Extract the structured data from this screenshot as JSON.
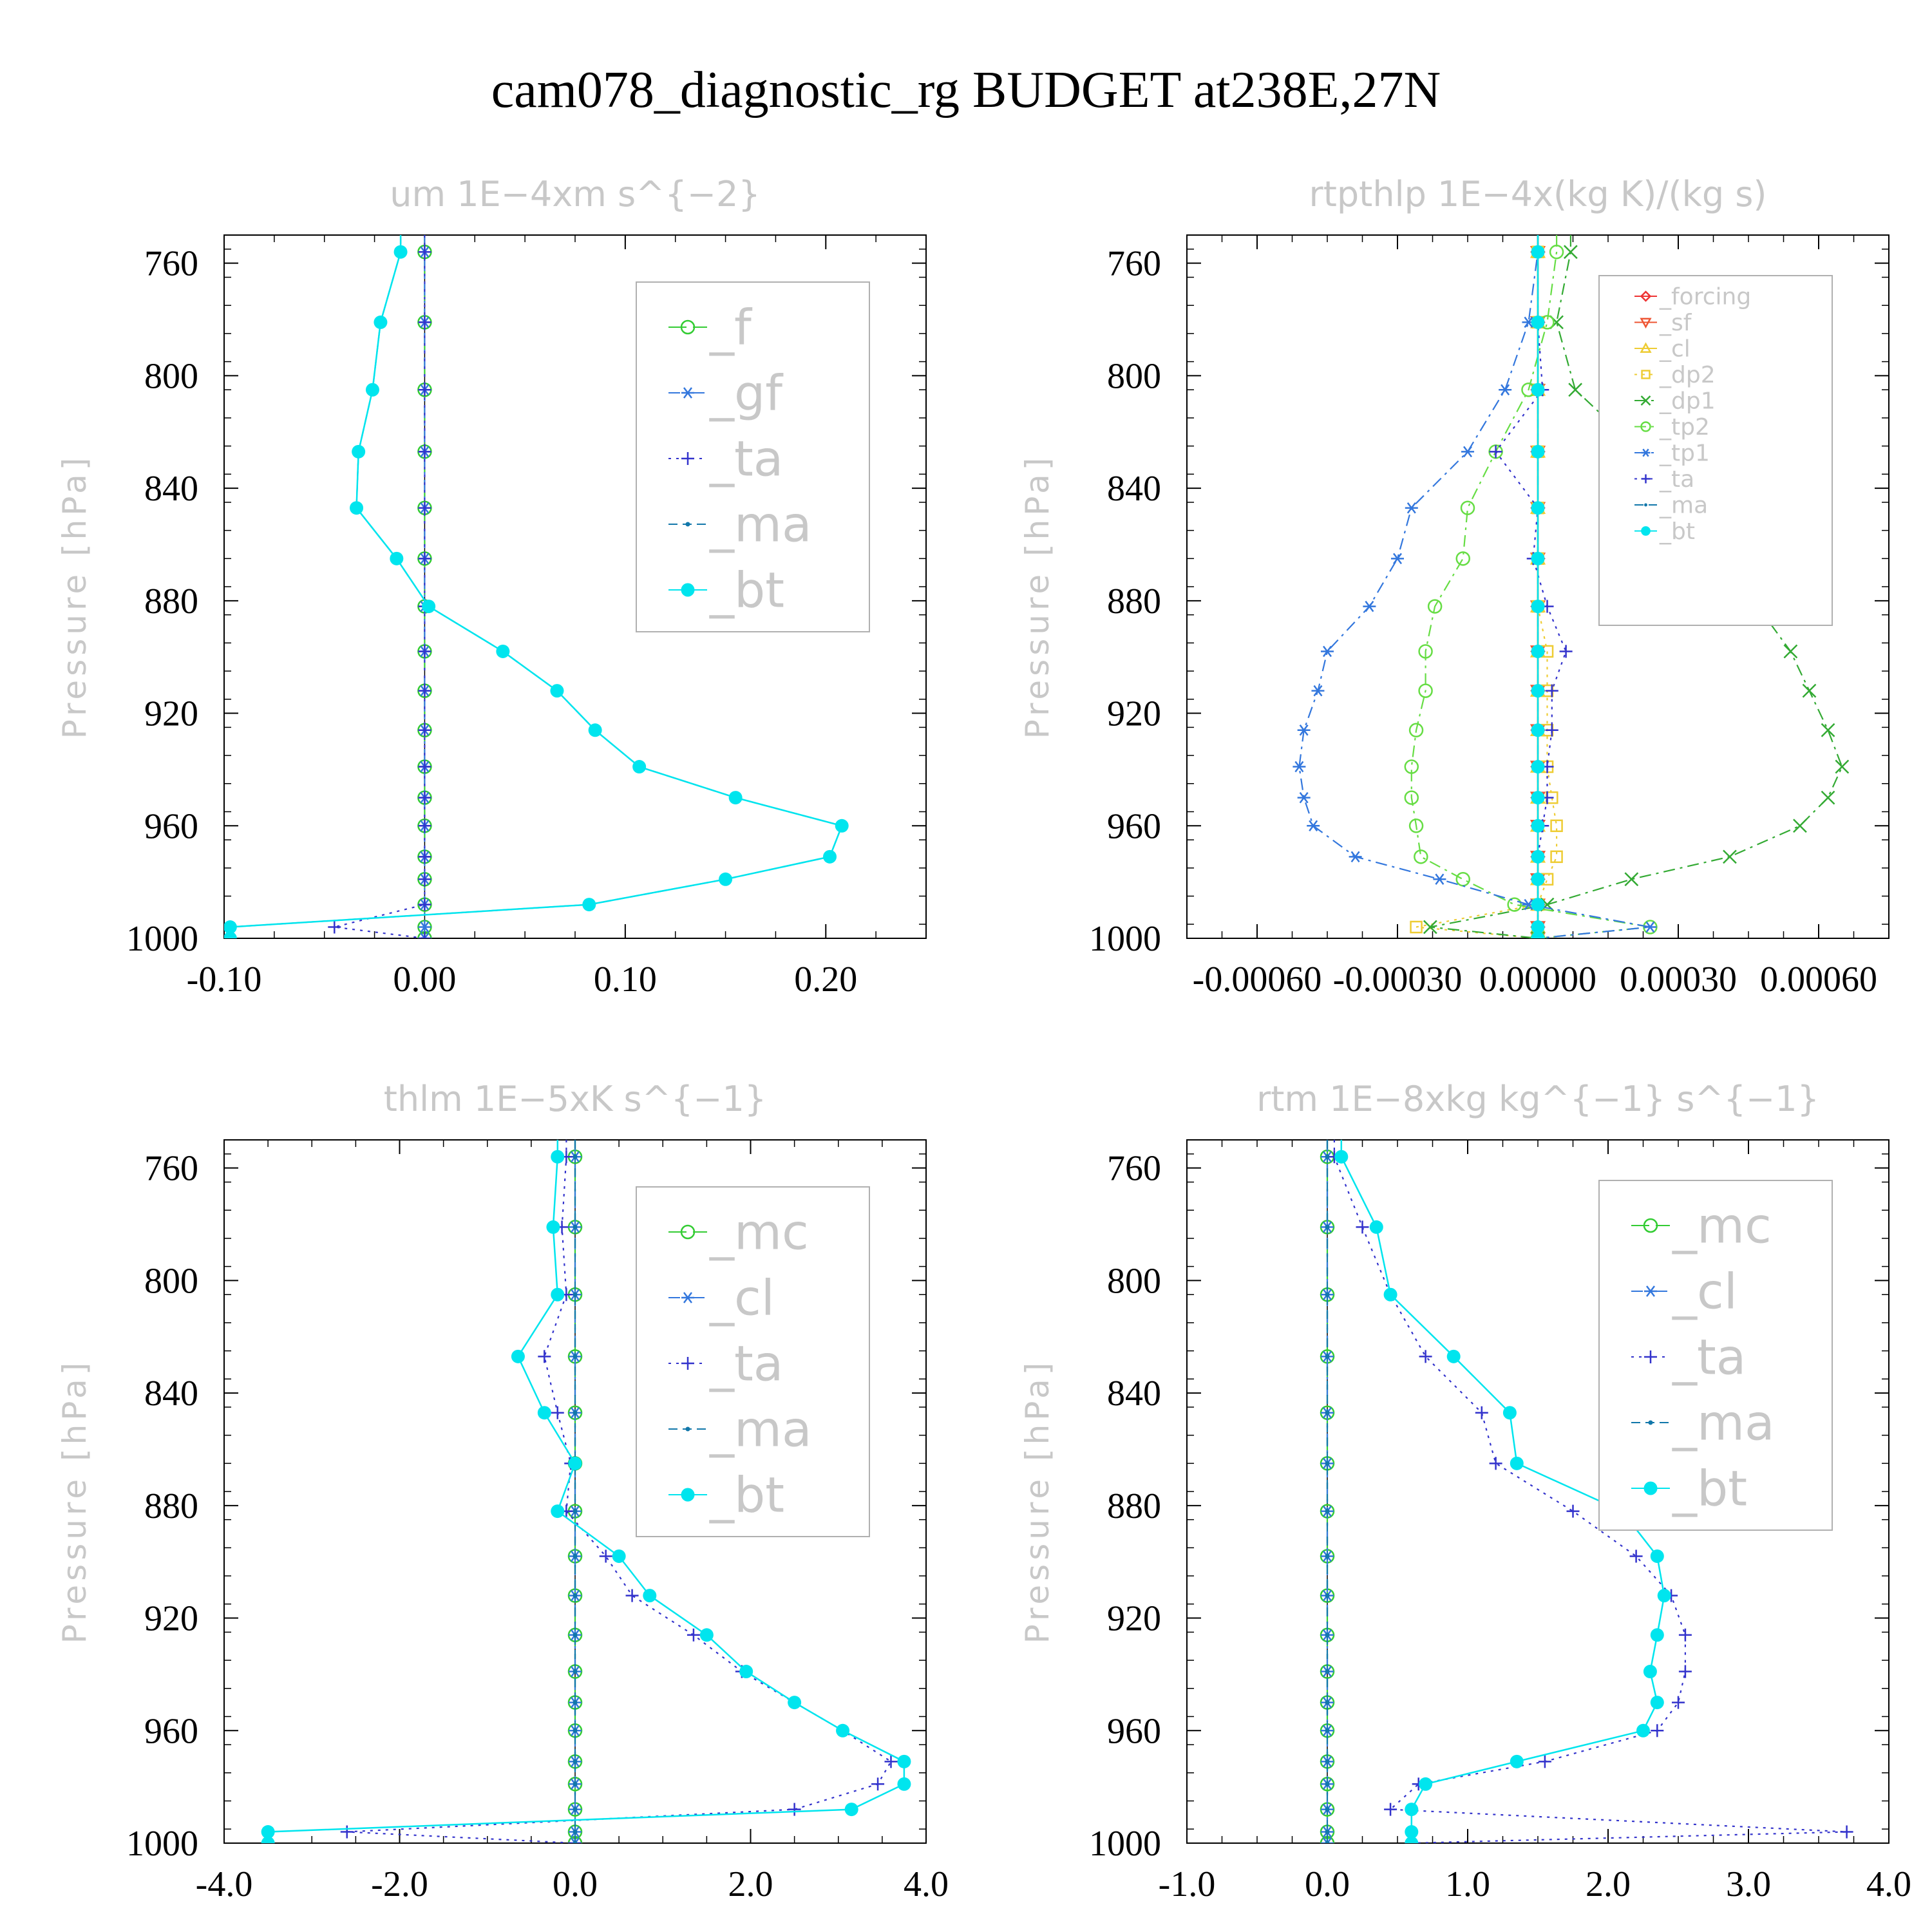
{
  "title": "cam078_diagnostic_rg  BUDGET at238E,27N",
  "chart_data": [
    {
      "type": "line",
      "title": "um   1E−4xm s^{−2}",
      "ylabel": "Pressure [hPa]",
      "ylim": [
        1000,
        750
      ],
      "yticks": [
        760,
        800,
        840,
        880,
        920,
        960,
        1000
      ],
      "xlim": [
        -0.1,
        0.25
      ],
      "xticks": [
        -0.1,
        0.0,
        0.1,
        0.2
      ],
      "xtick_labels": [
        "-0.10",
        "0.00",
        "0.10",
        "0.20"
      ],
      "legend_position": "top-right",
      "y": [
        756,
        781,
        805,
        827,
        847,
        865,
        882,
        898,
        912,
        926,
        939,
        950,
        960,
        971,
        979,
        988,
        996,
        1000
      ],
      "series": [
        {
          "name": "_f",
          "color": "#33cc33",
          "marker": "circle-open",
          "dash": "long",
          "values": [
            0,
            0,
            0,
            0,
            0,
            0,
            0,
            0,
            0,
            0,
            0,
            0,
            0,
            0,
            0,
            0,
            0,
            0
          ]
        },
        {
          "name": "_gf",
          "color": "#3377dd",
          "marker": "star",
          "dash": "dashdot",
          "values": [
            0,
            0,
            0,
            0,
            0,
            0,
            0,
            0,
            0,
            0,
            0,
            0,
            0,
            0,
            0,
            0,
            0,
            0
          ]
        },
        {
          "name": "_ta",
          "color": "#3333cc",
          "marker": "plus",
          "dash": "dot",
          "values": [
            0,
            0,
            0,
            0,
            0,
            0,
            0,
            0,
            0,
            0,
            0,
            0,
            0,
            0,
            0,
            0,
            -0.045,
            0
          ]
        },
        {
          "name": "_ma",
          "color": "#1177aa",
          "marker": "dot",
          "dash": "dash",
          "values": [
            -0.012,
            -0.022,
            -0.026,
            -0.033,
            -0.034,
            -0.014,
            0.002,
            0.039,
            0.066,
            0.085,
            0.107,
            0.155,
            0.208,
            0.202,
            0.15,
            0.082,
            -0.097,
            -0.097
          ]
        },
        {
          "name": "_bt",
          "color": "#00e5ee",
          "marker": "filled-circle",
          "dash": "solid",
          "values": [
            -0.012,
            -0.022,
            -0.026,
            -0.033,
            -0.034,
            -0.014,
            0.002,
            0.039,
            0.066,
            0.085,
            0.107,
            0.155,
            0.208,
            0.202,
            0.15,
            0.082,
            -0.097,
            -0.097
          ]
        }
      ]
    },
    {
      "type": "line",
      "title": "rtpthlp   1E−4x(kg K)/(kg s)",
      "ylabel": "Pressure [hPa]",
      "ylim": [
        1000,
        750
      ],
      "yticks": [
        760,
        800,
        840,
        880,
        920,
        960,
        1000
      ],
      "xlim": [
        -0.00075,
        0.00075
      ],
      "xticks": [
        -0.0006,
        -0.0003,
        0.0,
        0.0003,
        0.0006
      ],
      "xtick_labels": [
        "-0.00060",
        "-0.00030",
        "0.00000",
        "0.00030",
        "0.00060"
      ],
      "legend_position": "top-right",
      "y": [
        756,
        781,
        805,
        827,
        847,
        865,
        882,
        898,
        912,
        926,
        939,
        950,
        960,
        971,
        979,
        988,
        996,
        1000
      ],
      "series": [
        {
          "name": "_forcing",
          "color": "#ee3333",
          "marker": "diamond",
          "dash": "solid",
          "values": [
            0,
            0,
            0,
            0,
            0,
            0,
            0,
            0,
            0,
            0,
            0,
            0,
            0,
            0,
            0,
            0,
            0,
            0
          ]
        },
        {
          "name": "_sf",
          "color": "#ee5533",
          "marker": "tri-down",
          "dash": "solid",
          "values": [
            0,
            0,
            0,
            0,
            0,
            0,
            0,
            0,
            0,
            0,
            0,
            0,
            0,
            0,
            0,
            0,
            0,
            0
          ]
        },
        {
          "name": "_cl",
          "color": "#eecc33",
          "marker": "tri-up",
          "dash": "solid",
          "values": [
            0,
            0,
            0,
            0,
            0,
            0,
            0,
            0,
            0,
            0,
            0,
            0,
            0,
            0,
            0,
            0,
            0,
            0
          ]
        },
        {
          "name": "_dp2",
          "color": "#eecc33",
          "marker": "square",
          "dash": "dot",
          "values": [
            0,
            0,
            0,
            0,
            0,
            0,
            0,
            2e-05,
            2e-05,
            2e-05,
            2e-05,
            3e-05,
            4e-05,
            4e-05,
            2e-05,
            0,
            -0.00026,
            0
          ]
        },
        {
          "name": "_dp1",
          "color": "#33aa33",
          "marker": "x",
          "dash": "dashdot",
          "values": [
            7e-05,
            4e-05,
            8e-05,
            0.00022,
            0.00033,
            0.0004,
            0.00047,
            0.00054,
            0.00058,
            0.00062,
            0.00065,
            0.00062,
            0.00056,
            0.00041,
            0.0002,
            2e-05,
            -0.00023,
            0
          ]
        },
        {
          "name": "_tp2",
          "color": "#66dd44",
          "marker": "circle-open",
          "dash": "dashdot",
          "values": [
            4e-05,
            2e-05,
            -2e-05,
            -9e-05,
            -0.00015,
            -0.00016,
            -0.00022,
            -0.00024,
            -0.00024,
            -0.00026,
            -0.00027,
            -0.00027,
            -0.00026,
            -0.00025,
            -0.00016,
            -5e-05,
            0.00024,
            0
          ]
        },
        {
          "name": "_tp1",
          "color": "#3377dd",
          "marker": "star",
          "dash": "dashdot",
          "values": [
            0,
            -2e-05,
            -7e-05,
            -0.00015,
            -0.00027,
            -0.0003,
            -0.00036,
            -0.00045,
            -0.00047,
            -0.0005,
            -0.00051,
            -0.0005,
            -0.00048,
            -0.00039,
            -0.00021,
            -2e-05,
            0.00024,
            0
          ]
        },
        {
          "name": "_ta",
          "color": "#3333cc",
          "marker": "plus",
          "dash": "dot",
          "values": [
            0,
            0,
            1e-05,
            -9e-05,
            0,
            -1e-05,
            2e-05,
            6e-05,
            3e-05,
            3e-05,
            2e-05,
            2e-05,
            1e-05,
            0,
            0,
            0,
            0,
            0
          ]
        },
        {
          "name": "_ma",
          "color": "#1177aa",
          "marker": "dot",
          "dash": "dash",
          "values": [
            0,
            0,
            0,
            0,
            0,
            0,
            0,
            0,
            0,
            0,
            0,
            0,
            0,
            0,
            0,
            0,
            0,
            0
          ]
        },
        {
          "name": "_bt",
          "color": "#00e5ee",
          "marker": "filled-circle",
          "dash": "solid",
          "values": [
            0,
            0,
            0,
            0,
            0,
            0,
            0,
            0,
            0,
            0,
            0,
            0,
            0,
            0,
            0,
            0,
            0,
            0
          ]
        }
      ]
    },
    {
      "type": "line",
      "title": "thlm   1E−5xK s^{−1}",
      "ylabel": "Pressure [hPa]",
      "ylim": [
        1000,
        750
      ],
      "yticks": [
        760,
        800,
        840,
        880,
        920,
        960,
        1000
      ],
      "xlim": [
        -4.0,
        4.0
      ],
      "xticks": [
        -4.0,
        -2.0,
        0.0,
        2.0,
        4.0
      ],
      "xtick_labels": [
        "-4.0",
        "-2.0",
        "0.0",
        "2.0",
        "4.0"
      ],
      "legend_position": "top-right",
      "y": [
        756,
        781,
        805,
        827,
        847,
        865,
        882,
        898,
        912,
        926,
        939,
        950,
        960,
        971,
        979,
        988,
        996,
        1000
      ],
      "series": [
        {
          "name": "_mc",
          "color": "#33cc33",
          "marker": "circle-open",
          "dash": "long",
          "values": [
            0,
            0,
            0,
            0,
            0,
            0,
            0,
            0,
            0,
            0,
            0,
            0,
            0,
            0,
            0,
            0,
            0,
            0
          ]
        },
        {
          "name": "_cl",
          "color": "#3377dd",
          "marker": "star",
          "dash": "dashdot",
          "values": [
            0,
            0,
            0,
            0,
            0,
            0,
            0,
            0,
            0,
            0,
            0,
            0,
            0,
            0,
            0,
            0,
            0,
            0
          ]
        },
        {
          "name": "_ta",
          "color": "#3333cc",
          "marker": "plus",
          "dash": "dot",
          "values": [
            -0.1,
            -0.15,
            -0.1,
            -0.35,
            -0.2,
            -0.05,
            -0.1,
            0.35,
            0.65,
            1.35,
            1.9,
            2.5,
            3.05,
            3.6,
            3.45,
            2.5,
            -2.6,
            0
          ]
        },
        {
          "name": "_ma",
          "color": "#1177aa",
          "marker": "dot",
          "dash": "dash",
          "values": [
            0,
            0,
            0,
            0,
            0,
            0,
            0,
            0,
            0,
            0,
            0,
            0,
            0,
            0,
            0,
            0,
            0,
            0
          ]
        },
        {
          "name": "_bt",
          "color": "#00e5ee",
          "marker": "filled-circle",
          "dash": "solid",
          "values": [
            -0.2,
            -0.25,
            -0.2,
            -0.65,
            -0.35,
            0,
            -0.2,
            0.5,
            0.85,
            1.5,
            1.95,
            2.5,
            3.05,
            3.75,
            3.75,
            3.15,
            -3.5,
            -3.5
          ]
        }
      ]
    },
    {
      "type": "line",
      "title": "rtm   1E−8xkg kg^{−1} s^{−1}",
      "ylabel": "Pressure [hPa]",
      "ylim": [
        1000,
        750
      ],
      "yticks": [
        760,
        800,
        840,
        880,
        920,
        960,
        1000
      ],
      "xlim": [
        -1.0,
        4.0
      ],
      "xticks": [
        -1.0,
        0.0,
        1.0,
        2.0,
        3.0,
        4.0
      ],
      "xtick_labels": [
        "-1.0",
        "0.0",
        "1.0",
        "2.0",
        "3.0",
        "4.0"
      ],
      "legend_position": "top-right",
      "y": [
        756,
        781,
        805,
        827,
        847,
        865,
        882,
        898,
        912,
        926,
        939,
        950,
        960,
        971,
        979,
        988,
        996,
        1000
      ],
      "series": [
        {
          "name": "_mc",
          "color": "#33cc33",
          "marker": "circle-open",
          "dash": "long",
          "values": [
            0,
            0,
            0,
            0,
            0,
            0,
            0,
            0,
            0,
            0,
            0,
            0,
            0,
            0,
            0,
            0,
            0,
            0
          ]
        },
        {
          "name": "_cl",
          "color": "#3377dd",
          "marker": "star",
          "dash": "dashdot",
          "values": [
            0,
            0,
            0,
            0,
            0,
            0,
            0,
            0,
            0,
            0,
            0,
            0,
            0,
            0,
            0,
            0,
            0,
            0
          ]
        },
        {
          "name": "_ta",
          "color": "#3333cc",
          "marker": "plus",
          "dash": "dot",
          "values": [
            0.05,
            0.25,
            0.45,
            0.7,
            1.1,
            1.2,
            1.75,
            2.2,
            2.45,
            2.55,
            2.55,
            2.5,
            2.35,
            1.55,
            0.65,
            0.45,
            3.7,
            0.6
          ]
        },
        {
          "name": "_ma",
          "color": "#1177aa",
          "marker": "dot",
          "dash": "dash",
          "values": [
            0,
            0,
            0,
            0,
            0,
            0,
            0,
            0,
            0,
            0,
            0,
            0,
            0,
            0,
            0,
            0,
            0,
            0
          ]
        },
        {
          "name": "_bt",
          "color": "#00e5ee",
          "marker": "filled-circle",
          "dash": "solid",
          "values": [
            0.1,
            0.35,
            0.45,
            0.9,
            1.3,
            1.35,
            2.1,
            2.35,
            2.4,
            2.35,
            2.3,
            2.35,
            2.25,
            1.35,
            0.7,
            0.6,
            0.6,
            0.6
          ]
        }
      ]
    }
  ]
}
